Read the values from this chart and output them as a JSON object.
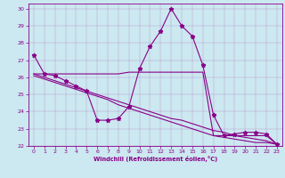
{
  "xlabel": "Windchill (Refroidissement éolien,°C)",
  "background_color": "#cce8f0",
  "line_color": "#880088",
  "grid_color": "#aaddee",
  "xlim": [
    -0.5,
    23.5
  ],
  "ylim": [
    22,
    30.3
  ],
  "yticks": [
    22,
    23,
    24,
    25,
    26,
    27,
    28,
    29,
    30
  ],
  "xticks": [
    0,
    1,
    2,
    3,
    4,
    5,
    6,
    7,
    8,
    9,
    10,
    11,
    12,
    13,
    14,
    15,
    16,
    17,
    18,
    19,
    20,
    21,
    22,
    23
  ],
  "series1_x": [
    0,
    1,
    2,
    3,
    4,
    5,
    6,
    7,
    8,
    9,
    10,
    11,
    12,
    13,
    14,
    15,
    16,
    17,
    18,
    19,
    20,
    21,
    22,
    23
  ],
  "series1_y": [
    27.3,
    26.2,
    26.1,
    25.8,
    25.5,
    25.2,
    23.5,
    23.5,
    23.6,
    24.3,
    26.5,
    27.8,
    28.7,
    30.0,
    29.0,
    28.4,
    26.7,
    23.8,
    22.6,
    22.7,
    22.8,
    22.8,
    22.7,
    22.1
  ],
  "series2_x": [
    0,
    1,
    2,
    3,
    4,
    5,
    6,
    7,
    8,
    9,
    10,
    11,
    12,
    13,
    14,
    15,
    16,
    17,
    18,
    19,
    20,
    21,
    22,
    23
  ],
  "series2_y": [
    26.2,
    26.2,
    26.2,
    26.2,
    26.2,
    26.2,
    26.2,
    26.2,
    26.2,
    26.3,
    26.3,
    26.3,
    26.3,
    26.3,
    26.3,
    26.3,
    26.3,
    22.6,
    22.6,
    22.6,
    22.6,
    22.6,
    22.6,
    22.1
  ],
  "series3_x": [
    0,
    1,
    2,
    3,
    4,
    5,
    6,
    7,
    8,
    9,
    10,
    11,
    12,
    13,
    14,
    15,
    16,
    17,
    18,
    19,
    20,
    21,
    22,
    23
  ],
  "series3_y": [
    26.2,
    26.0,
    25.8,
    25.6,
    25.4,
    25.2,
    25.0,
    24.8,
    24.6,
    24.4,
    24.2,
    24.0,
    23.8,
    23.6,
    23.5,
    23.3,
    23.1,
    22.9,
    22.8,
    22.6,
    22.5,
    22.4,
    22.3,
    22.1
  ],
  "series4_x": [
    0,
    1,
    2,
    3,
    4,
    5,
    6,
    7,
    8,
    9,
    10,
    11,
    12,
    13,
    14,
    15,
    16,
    17,
    18,
    19,
    20,
    21,
    22,
    23
  ],
  "series4_y": [
    26.1,
    25.9,
    25.7,
    25.5,
    25.3,
    25.1,
    24.9,
    24.7,
    24.4,
    24.2,
    24.0,
    23.8,
    23.6,
    23.4,
    23.2,
    23.0,
    22.8,
    22.6,
    22.5,
    22.4,
    22.3,
    22.2,
    22.2,
    22.1
  ]
}
